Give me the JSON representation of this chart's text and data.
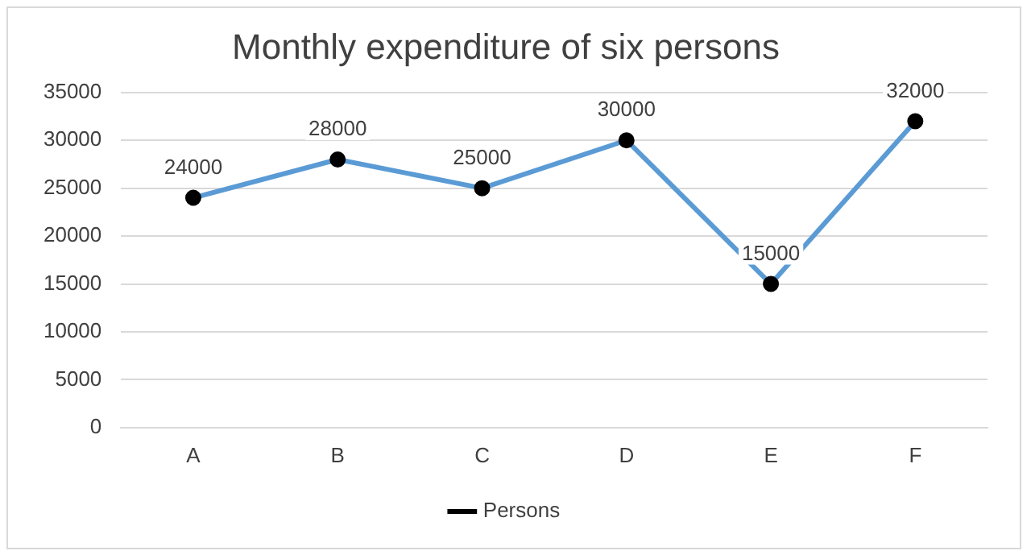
{
  "chart_data": {
    "type": "line",
    "title": "Monthly expenditure of six persons",
    "categories": [
      "A",
      "B",
      "C",
      "D",
      "E",
      "F"
    ],
    "series": [
      {
        "name": "Persons",
        "color": "#5b9bd5",
        "values": [
          24000,
          28000,
          25000,
          30000,
          15000,
          32000
        ]
      }
    ],
    "ylim": [
      0,
      35000
    ],
    "yticks": [
      0,
      5000,
      10000,
      15000,
      20000,
      25000,
      30000,
      35000
    ],
    "grid": "y",
    "legend": "bottom",
    "marker": "circle",
    "data_labels": true
  }
}
